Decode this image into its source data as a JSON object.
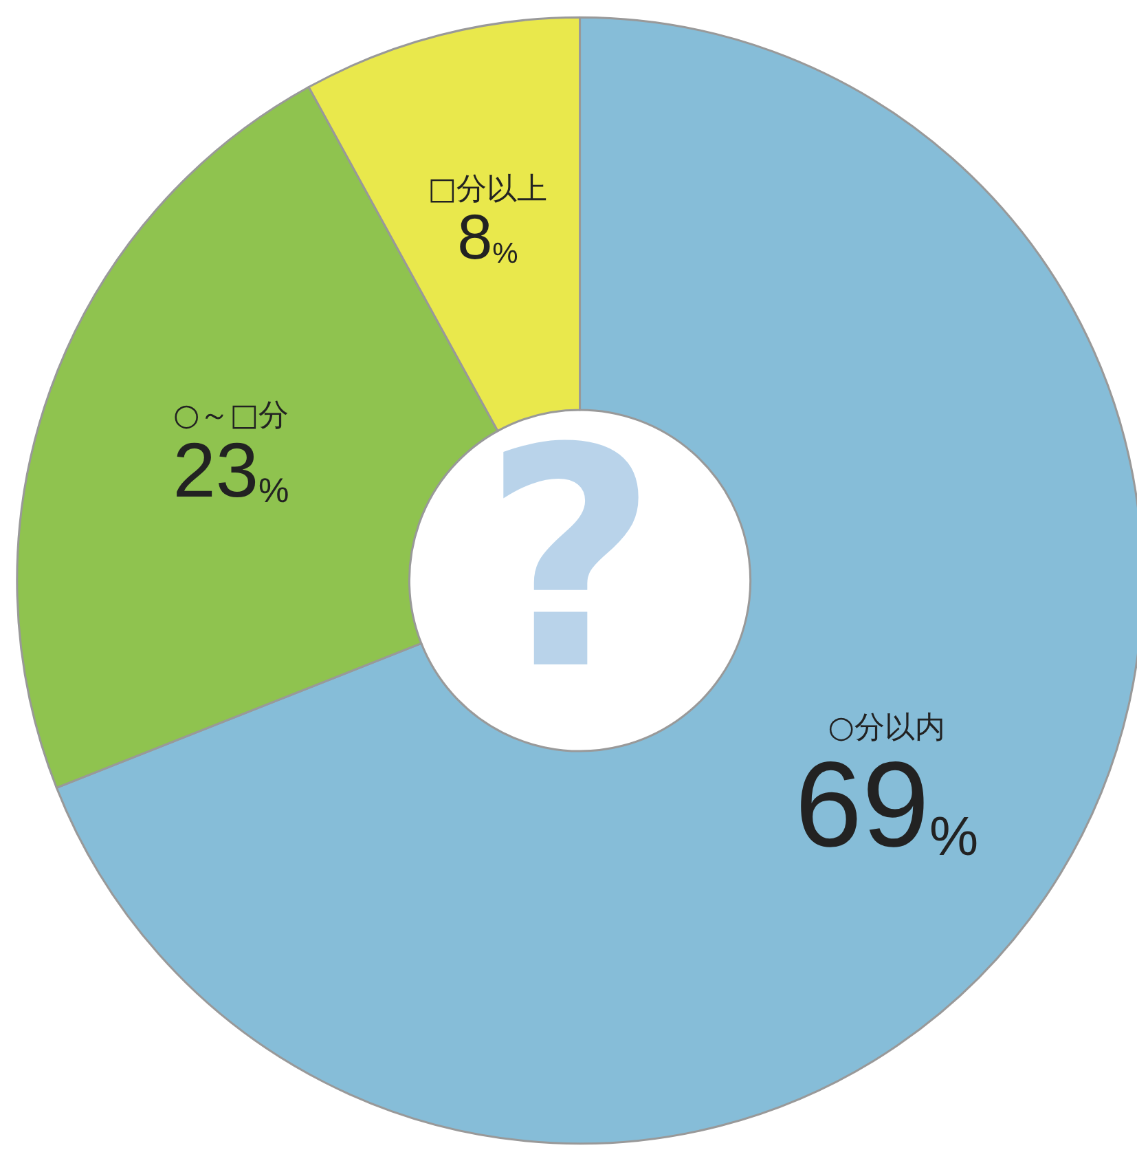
{
  "chart_data": {
    "type": "donut",
    "categories": [
      "○分以内",
      "○～□分",
      "□分以上"
    ],
    "values": [
      69,
      23,
      8
    ],
    "colors": [
      "#86bdd8",
      "#8fc34f",
      "#e9e84c"
    ],
    "value_labels": [
      "69%",
      "23%",
      "8%"
    ],
    "annotations": [
      "?"
    ],
    "legend": false
  }
}
